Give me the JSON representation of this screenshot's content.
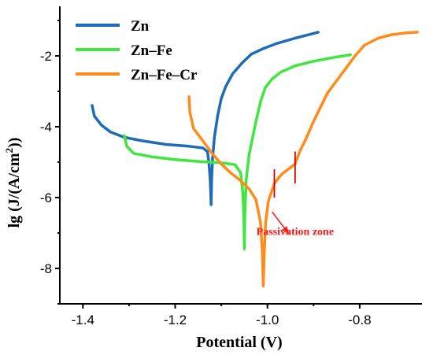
{
  "chart_data": {
    "type": "line",
    "xlabel": "Potential (V)",
    "ylabel_main": "lg (J/(A/cm",
    "ylabel_sup": "2",
    "ylabel_tail": "))",
    "xlim": [
      -1.45,
      -0.665
    ],
    "ylim": [
      -9.0,
      -0.6
    ],
    "xticks": [
      -1.4,
      -1.2,
      -1.0,
      -0.8
    ],
    "xtick_labels": [
      "-1.4",
      "-1.2",
      "-1.0",
      "-0.8"
    ],
    "yticks": [
      -8,
      -6,
      -4,
      -2
    ],
    "ytick_labels": [
      "-8",
      "-6",
      "-4",
      "-2"
    ],
    "grid": false,
    "legend_position": "top-left",
    "series": [
      {
        "name": "Zn",
        "color": "#1f6bb5",
        "points": [
          [
            -1.38,
            -3.4
          ],
          [
            -1.375,
            -3.7
          ],
          [
            -1.36,
            -3.95
          ],
          [
            -1.34,
            -4.15
          ],
          [
            -1.31,
            -4.3
          ],
          [
            -1.27,
            -4.4
          ],
          [
            -1.22,
            -4.5
          ],
          [
            -1.17,
            -4.55
          ],
          [
            -1.14,
            -4.6
          ],
          [
            -1.13,
            -4.7
          ],
          [
            -1.127,
            -5.0
          ],
          [
            -1.124,
            -5.5
          ],
          [
            -1.122,
            -6.2
          ],
          [
            -1.121,
            -5.5
          ],
          [
            -1.119,
            -4.9
          ],
          [
            -1.115,
            -4.3
          ],
          [
            -1.108,
            -3.7
          ],
          [
            -1.1,
            -3.2
          ],
          [
            -1.09,
            -2.85
          ],
          [
            -1.075,
            -2.5
          ],
          [
            -1.055,
            -2.2
          ],
          [
            -1.035,
            -1.95
          ],
          [
            -1.01,
            -1.8
          ],
          [
            -0.98,
            -1.65
          ],
          [
            -0.94,
            -1.5
          ],
          [
            -0.89,
            -1.33
          ]
        ]
      },
      {
        "name": "Zn–Fe",
        "color": "#3ee63e",
        "points": [
          [
            -1.31,
            -4.25
          ],
          [
            -1.305,
            -4.55
          ],
          [
            -1.29,
            -4.75
          ],
          [
            -1.25,
            -4.85
          ],
          [
            -1.2,
            -4.93
          ],
          [
            -1.15,
            -4.98
          ],
          [
            -1.1,
            -5.02
          ],
          [
            -1.07,
            -5.07
          ],
          [
            -1.058,
            -5.3
          ],
          [
            -1.053,
            -5.9
          ],
          [
            -1.051,
            -6.6
          ],
          [
            -1.05,
            -7.45
          ],
          [
            -1.049,
            -6.5
          ],
          [
            -1.046,
            -5.5
          ],
          [
            -1.04,
            -4.8
          ],
          [
            -1.032,
            -4.3
          ],
          [
            -1.024,
            -3.8
          ],
          [
            -1.015,
            -3.3
          ],
          [
            -1.005,
            -2.9
          ],
          [
            -0.99,
            -2.65
          ],
          [
            -0.97,
            -2.45
          ],
          [
            -0.94,
            -2.28
          ],
          [
            -0.9,
            -2.15
          ],
          [
            -0.86,
            -2.05
          ],
          [
            -0.82,
            -1.97
          ]
        ]
      },
      {
        "name": "Zn–Fe–Cr",
        "color": "#ff8c1a",
        "points": [
          [
            -1.17,
            -3.15
          ],
          [
            -1.168,
            -3.6
          ],
          [
            -1.16,
            -4.05
          ],
          [
            -1.14,
            -4.4
          ],
          [
            -1.12,
            -4.75
          ],
          [
            -1.1,
            -5.05
          ],
          [
            -1.08,
            -5.3
          ],
          [
            -1.06,
            -5.5
          ],
          [
            -1.04,
            -5.75
          ],
          [
            -1.025,
            -6.05
          ],
          [
            -1.015,
            -6.7
          ],
          [
            -1.011,
            -7.5
          ],
          [
            -1.009,
            -8.5
          ],
          [
            -1.007,
            -7.6
          ],
          [
            -1.004,
            -6.7
          ],
          [
            -0.998,
            -6.1
          ],
          [
            -0.985,
            -5.6
          ],
          [
            -0.97,
            -5.35
          ],
          [
            -0.955,
            -5.2
          ],
          [
            -0.94,
            -5.05
          ],
          [
            -0.93,
            -4.7
          ],
          [
            -0.915,
            -4.3
          ],
          [
            -0.9,
            -3.85
          ],
          [
            -0.885,
            -3.45
          ],
          [
            -0.87,
            -3.05
          ],
          [
            -0.85,
            -2.7
          ],
          [
            -0.83,
            -2.35
          ],
          [
            -0.81,
            -2.0
          ],
          [
            -0.79,
            -1.7
          ],
          [
            -0.76,
            -1.5
          ],
          [
            -0.73,
            -1.4
          ],
          [
            -0.7,
            -1.35
          ],
          [
            -0.675,
            -1.33
          ]
        ]
      }
    ],
    "annotations": {
      "text": "Passivation zone",
      "color": "#ff1a1a",
      "marker_color": "#d40000",
      "markers": [
        {
          "x": -0.985,
          "y1": -5.2,
          "y2": -6.0
        },
        {
          "x": -0.94,
          "y1": -4.7,
          "y2": -5.6
        }
      ],
      "arrow_from": [
        -0.99,
        -6.4
      ],
      "arrow_to": [
        -0.955,
        -7.0
      ],
      "text_anchor": [
        -0.94,
        -7.05
      ]
    }
  }
}
